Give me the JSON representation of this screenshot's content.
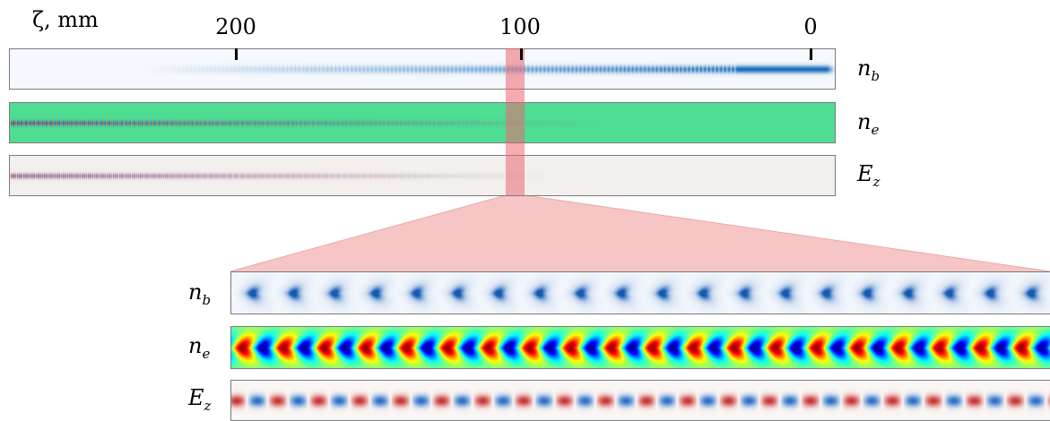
{
  "axis": {
    "title": "ζ, mm",
    "ticks": [
      {
        "label": "200"
      },
      {
        "label": "100"
      },
      {
        "label": "0"
      }
    ]
  },
  "top_strips": [
    {
      "id": "nb",
      "label_main": "n",
      "label_sub": "b"
    },
    {
      "id": "ne",
      "label_main": "n",
      "label_sub": "e"
    },
    {
      "id": "ez",
      "label_main": "E",
      "label_sub": "z"
    }
  ],
  "zoom_strips": [
    {
      "id": "nb",
      "label_main": "n",
      "label_sub": "b"
    },
    {
      "id": "ne",
      "label_main": "n",
      "label_sub": "e"
    },
    {
      "id": "ez",
      "label_main": "E",
      "label_sub": "z"
    }
  ],
  "colors": {
    "highlight": "#ec6670",
    "fan": "#f6c6c6",
    "ne_background": "#4fdc93",
    "nb_blue": "#1f6fb8",
    "ez_background": "#f3efed"
  }
}
